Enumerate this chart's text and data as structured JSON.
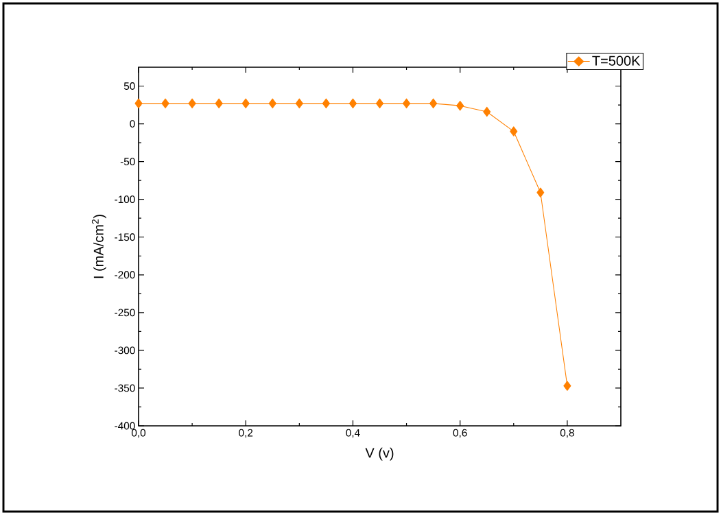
{
  "chart_data": {
    "type": "line",
    "xlabel": "V (v)",
    "ylabel": "I (mA/cm$^{2}$)",
    "x": [
      0,
      0.05,
      0.1,
      0.15,
      0.2,
      0.25,
      0.3,
      0.35,
      0.4,
      0.45,
      0.5,
      0.55,
      0.6,
      0.65,
      0.7,
      0.75,
      0.8
    ],
    "series": [
      {
        "name": "T=500K",
        "color": "#ff8000",
        "values": [
          27,
          27,
          27,
          27,
          27,
          27,
          27,
          27,
          27,
          27,
          27,
          27,
          24,
          16,
          -10,
          -91,
          -347
        ]
      }
    ],
    "xlim": [
      0,
      0.9
    ],
    "ylim": [
      -400,
      75
    ],
    "xticks": [
      {
        "value": 0,
        "label": "0,0"
      },
      {
        "value": 0.2,
        "label": "0,2"
      },
      {
        "value": 0.4,
        "label": "0,4"
      },
      {
        "value": 0.6,
        "label": "0,6"
      },
      {
        "value": 0.8,
        "label": "0,8"
      }
    ],
    "yticks": [
      -400,
      -350,
      -300,
      -250,
      -200,
      -150,
      -100,
      -50,
      0,
      50
    ],
    "grid": false,
    "legend": "top right",
    "marker": "diamond",
    "line_style": "solid"
  }
}
